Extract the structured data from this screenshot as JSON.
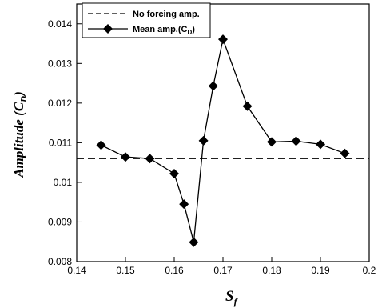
{
  "chart_data": {
    "type": "line",
    "xlabel": "S",
    "xlabel_sub": "f",
    "ylabel": "Amplitude (C",
    "ylabel_sub": "D",
    "ylabel_close": ")",
    "xlim": [
      0.14,
      0.2
    ],
    "ylim": [
      0.008,
      0.0145
    ],
    "x_ticks": [
      "0.14",
      "0.15",
      "0.16",
      "0.17",
      "0.18",
      "0.19",
      "0.2"
    ],
    "y_ticks": [
      "0.008",
      "0.009",
      "0.01",
      "0.011",
      "0.012",
      "0.013",
      "0.014"
    ],
    "grid": false,
    "legend_position": "top-left",
    "series": [
      {
        "name": "No forcing amp.",
        "style": "dashed",
        "x": [
          0.14,
          0.2
        ],
        "y": [
          0.0106,
          0.0106
        ]
      },
      {
        "name": "Mean amp.(C",
        "name_sub": "D",
        "name_close": ")",
        "style": "line-diamond",
        "x": [
          0.145,
          0.15,
          0.155,
          0.16,
          0.162,
          0.164,
          0.166,
          0.168,
          0.17,
          0.175,
          0.18,
          0.185,
          0.19,
          0.195
        ],
        "y": [
          0.01094,
          0.01064,
          0.0106,
          0.01022,
          0.00945,
          0.00849,
          0.01105,
          0.01243,
          0.01361,
          0.01192,
          0.01102,
          0.01104,
          0.01096,
          0.01073
        ]
      }
    ]
  }
}
